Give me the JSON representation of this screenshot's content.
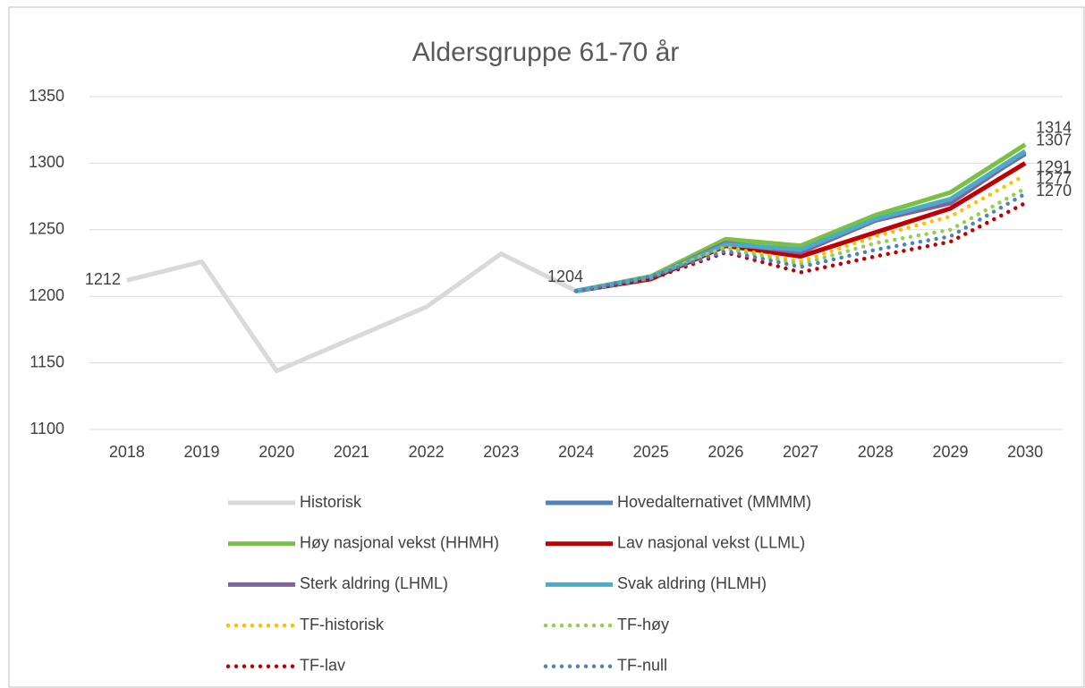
{
  "chart_data": {
    "type": "line",
    "title": "Aldersgruppe 61-70 år",
    "categories": [
      "2018",
      "2019",
      "2020",
      "2021",
      "2022",
      "2023",
      "2024",
      "2025",
      "2026",
      "2027",
      "2028",
      "2029",
      "2030"
    ],
    "ylim": [
      1100,
      1350
    ],
    "yticks": [
      1100,
      1150,
      1200,
      1250,
      1300,
      1350
    ],
    "grid": true,
    "series": [
      {
        "name": "Historisk",
        "color": "#d9d9d9",
        "style": "solid",
        "values": [
          1212,
          1226,
          1144,
          1168,
          1192,
          1232,
          1204,
          null,
          null,
          null,
          null,
          null,
          null
        ],
        "labeled_points": [
          0,
          6
        ]
      },
      {
        "name": "Hovedalternativet (MMMM)",
        "color": "#4f81bd",
        "style": "solid",
        "values": [
          null,
          null,
          null,
          null,
          null,
          null,
          1204,
          1214,
          1240,
          1234,
          1257,
          1272,
          1307
        ],
        "labeled_points": [
          12
        ]
      },
      {
        "name": "Høy nasjonal vekst (HHMH)",
        "color": "#7ac143",
        "style": "solid",
        "values": [
          null,
          null,
          null,
          null,
          null,
          null,
          1204,
          1215,
          1243,
          1238,
          1261,
          1278,
          1314
        ],
        "labeled_points": [
          12
        ]
      },
      {
        "name": "Lav nasjonal vekst (LLML)",
        "color": "#c00000",
        "style": "solid",
        "values": [
          null,
          null,
          null,
          null,
          null,
          null,
          1204,
          1213,
          1238,
          1230,
          1248,
          1266,
          1300
        ],
        "labeled_points": []
      },
      {
        "name": "Sterk aldring (LHML)",
        "color": "#8064a2",
        "style": "solid",
        "values": [
          null,
          null,
          null,
          null,
          null,
          null,
          1204,
          1214,
          1240,
          1233,
          1257,
          1270,
          1308
        ],
        "labeled_points": []
      },
      {
        "name": "Svak aldring (HLMH)",
        "color": "#4bacc6",
        "style": "solid",
        "values": [
          null,
          null,
          null,
          null,
          null,
          null,
          1204,
          1214,
          1239,
          1235,
          1258,
          1273,
          1309
        ],
        "labeled_points": []
      },
      {
        "name": "TF-historisk",
        "color": "#ffc000",
        "style": "dotted",
        "values": [
          null,
          null,
          null,
          null,
          null,
          null,
          1204,
          1215,
          1237,
          1226,
          1245,
          1260,
          1291
        ],
        "labeled_points": [
          12
        ]
      },
      {
        "name": "TF-høy",
        "color": "#92d050",
        "style": "dotted",
        "values": [
          null,
          null,
          null,
          null,
          null,
          null,
          1204,
          1215,
          1236,
          1224,
          1240,
          1250,
          1281
        ],
        "labeled_points": []
      },
      {
        "name": "TF-lav",
        "color": "#c00000",
        "style": "dotted",
        "values": [
          null,
          null,
          null,
          null,
          null,
          null,
          1204,
          1213,
          1233,
          1218,
          1230,
          1241,
          1270
        ],
        "labeled_points": [
          12
        ]
      },
      {
        "name": "TF-null",
        "color": "#4f81bd",
        "style": "dotted",
        "values": [
          null,
          null,
          null,
          null,
          null,
          null,
          1204,
          1215,
          1234,
          1222,
          1235,
          1245,
          1277
        ],
        "labeled_points": [
          12
        ]
      }
    ]
  }
}
